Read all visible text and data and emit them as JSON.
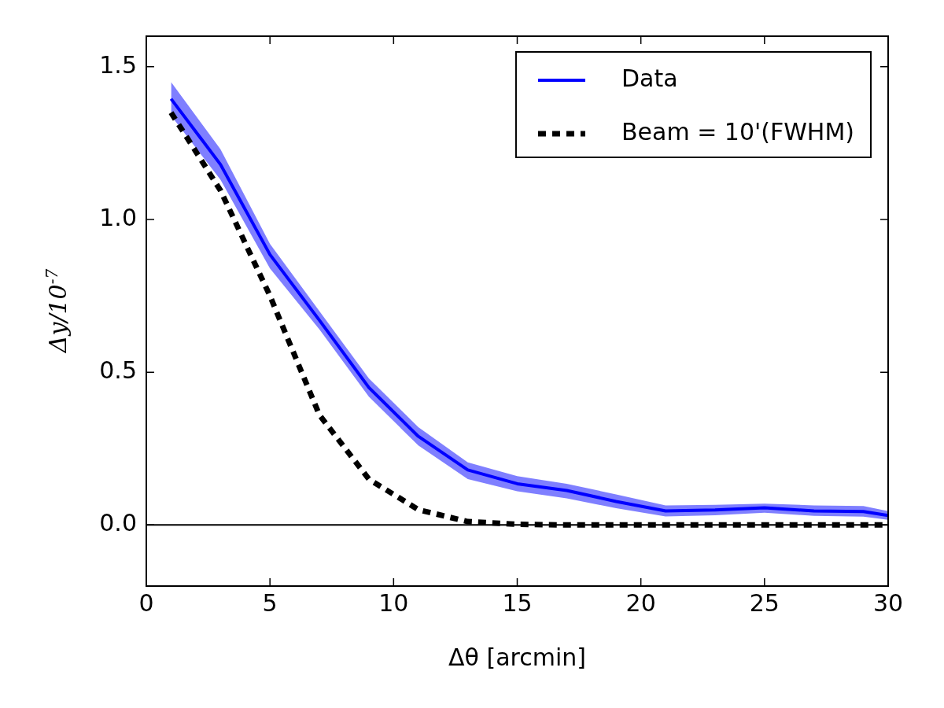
{
  "chart_data": {
    "type": "line",
    "xlabel": "Δθ [arcmin]",
    "ylabel": "Δy/10$^{-7}$",
    "x": [
      1,
      3,
      5,
      7,
      9,
      11,
      13,
      15,
      17,
      19,
      21,
      23,
      25,
      27,
      29,
      30
    ],
    "series": [
      {
        "name": "Data",
        "color": "#0000ff",
        "line_style": "solid",
        "values": [
          1.395,
          1.18,
          0.885,
          0.67,
          0.45,
          0.29,
          0.18,
          0.135,
          0.113,
          0.077,
          0.046,
          0.049,
          0.056,
          0.046,
          0.044,
          0.031
        ],
        "lower": [
          1.34,
          1.13,
          0.84,
          0.64,
          0.42,
          0.26,
          0.15,
          0.11,
          0.087,
          0.055,
          0.028,
          0.032,
          0.04,
          0.03,
          0.027,
          0.017
        ],
        "upper": [
          1.45,
          1.23,
          0.92,
          0.7,
          0.48,
          0.32,
          0.205,
          0.16,
          0.135,
          0.1,
          0.064,
          0.066,
          0.07,
          0.064,
          0.062,
          0.045
        ]
      },
      {
        "name": "Beam = 10'(FWHM)",
        "color": "#000000",
        "line_style": "dashed",
        "values": [
          1.35,
          1.095,
          0.75,
          0.36,
          0.15,
          0.05,
          0.011,
          0.002,
          0,
          0,
          0,
          0,
          0,
          0,
          0,
          0
        ]
      }
    ],
    "xlim": [
      0,
      30
    ],
    "xticks": [
      0,
      5,
      10,
      15,
      20,
      25,
      30
    ],
    "ylim": [
      -0.2,
      1.6
    ],
    "yticks": [
      {
        "value": 0,
        "label": "0.0"
      },
      {
        "value": 0.5,
        "label": "0.5"
      },
      {
        "value": 1,
        "label": "1.0"
      },
      {
        "value": 1.5,
        "label": "1.5"
      }
    ],
    "ref_lines": [
      {
        "axis": "y",
        "value": 0,
        "color": "#000000"
      }
    ],
    "legend": "top right",
    "grid": false,
    "marker": "none"
  }
}
